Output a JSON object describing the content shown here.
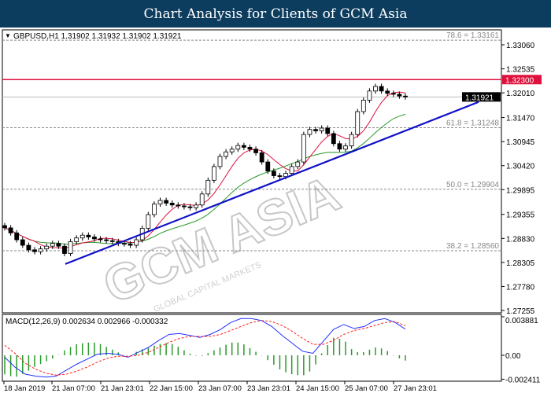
{
  "header": {
    "title": "Chart Analysis for Clients of GCM Asia"
  },
  "chart_header": {
    "label": "GBPUSD,H1  1.31902 1.31932 1.31902 1.31921"
  },
  "watermark": {
    "main": "GCM ASIA",
    "sub": "GLOBAL CAPITAL MARKETS"
  },
  "colors": {
    "resistance": "#e0103c",
    "trendline": "#1010c8",
    "ma_fast": "#e0103c",
    "ma_slow": "#2a9a2a",
    "macd": "#2030ff",
    "signal": "#ff2020",
    "histogram": "#2a9a2a",
    "bull": "#ffffff",
    "bear": "#000000"
  },
  "chart_data": [
    {
      "type": "candlestick",
      "symbol": "GBPUSD",
      "timeframe": "H1",
      "ylim": [
        1.27255,
        1.33161
      ],
      "y_ticks": [
        "1.33060",
        "1.32535",
        "1.32010",
        "1.31470",
        "1.30945",
        "1.30420",
        "1.29895",
        "1.29355",
        "1.28830",
        "1.28305",
        "1.27780",
        "1.27255"
      ],
      "x_ticks": [
        "18 Jan 2019",
        "21 Jan 07:00",
        "21 Jan 23:01",
        "22 Jan 15:00",
        "23 Jan 07:00",
        "23 Jan 23:01",
        "24 Jan 15:00",
        "25 Jan 07:00",
        "27 Jan 23:01"
      ],
      "closes": [
        1.2906,
        1.2895,
        1.288,
        1.2868,
        1.2858,
        1.2854,
        1.286,
        1.2866,
        1.2872,
        1.2866,
        1.285,
        1.2876,
        1.2884,
        1.289,
        1.2886,
        1.2882,
        1.288,
        1.2878,
        1.2876,
        1.2872,
        1.2871,
        1.2868,
        1.288,
        1.2905,
        1.2935,
        1.2958,
        1.2966,
        1.296,
        1.2956,
        1.2954,
        1.2952,
        1.295,
        1.2956,
        1.298,
        1.301,
        1.304,
        1.3062,
        1.3072,
        1.3078,
        1.3086,
        1.3082,
        1.3078,
        1.307,
        1.305,
        1.303,
        1.302,
        1.3018,
        1.3025,
        1.304,
        1.305,
        1.311,
        1.3121,
        1.3118,
        1.3124,
        1.3112,
        1.309,
        1.3078,
        1.3085,
        1.311,
        1.316,
        1.3185,
        1.3205,
        1.3215,
        1.3205,
        1.32,
        1.3198,
        1.3194,
        1.31921
      ],
      "levels": [
        {
          "label": "78.6 = 1.33161",
          "value": 1.33161
        },
        {
          "label": "61.8 = 1.31248",
          "value": 1.31248
        },
        {
          "label": "50.0 = 1.29904",
          "value": 1.29904
        },
        {
          "label": "38.2 = 1.28560",
          "value": 1.2856
        }
      ],
      "resistance": {
        "value": 1.323,
        "label": "1.32300"
      },
      "current": {
        "value": 1.31921,
        "label": "1.31921"
      },
      "trendline": {
        "start": 1.2827,
        "end": 1.3181
      }
    },
    {
      "type": "line",
      "title": "MACD(12,26,9) 0.002634 0.002966 -0.000332",
      "ylim": [
        -0.002411,
        0.003881
      ],
      "y_ticks": [
        "0.003881",
        "0.00",
        "-0.002411"
      ],
      "macd": [
        -0.0002,
        -0.0012,
        -0.0019,
        -0.0021,
        -0.0022,
        -0.0021,
        -0.0015,
        -0.0009,
        -0.0004,
        0.0001,
        0.0002,
        0.0001,
        -0.0002,
        0.0003,
        0.0008,
        0.0015,
        0.0021,
        0.0022,
        0.002,
        0.0018,
        0.0021,
        0.0026,
        0.0033,
        0.0037,
        0.0037,
        0.0035,
        0.0029,
        0.002,
        0.0012,
        0.0004,
        0.0002,
        0.0014,
        0.0026,
        0.0031,
        0.0027,
        0.0029,
        0.0035,
        0.0037,
        0.0033,
        0.002634
      ],
      "signal": [
        0.001,
        0.0002,
        -0.0008,
        -0.0014,
        -0.0018,
        -0.002,
        -0.0019,
        -0.0016,
        -0.0012,
        -0.0007,
        -0.0003,
        -0.0001,
        -0.0001,
        0.0,
        0.0003,
        0.0008,
        0.0013,
        0.0017,
        0.0019,
        0.0019,
        0.0019,
        0.0021,
        0.0025,
        0.0029,
        0.0033,
        0.0035,
        0.0034,
        0.003,
        0.0024,
        0.0017,
        0.0011,
        0.0011,
        0.0015,
        0.0021,
        0.0025,
        0.0027,
        0.003,
        0.0033,
        0.0034,
        0.002966
      ]
    }
  ]
}
